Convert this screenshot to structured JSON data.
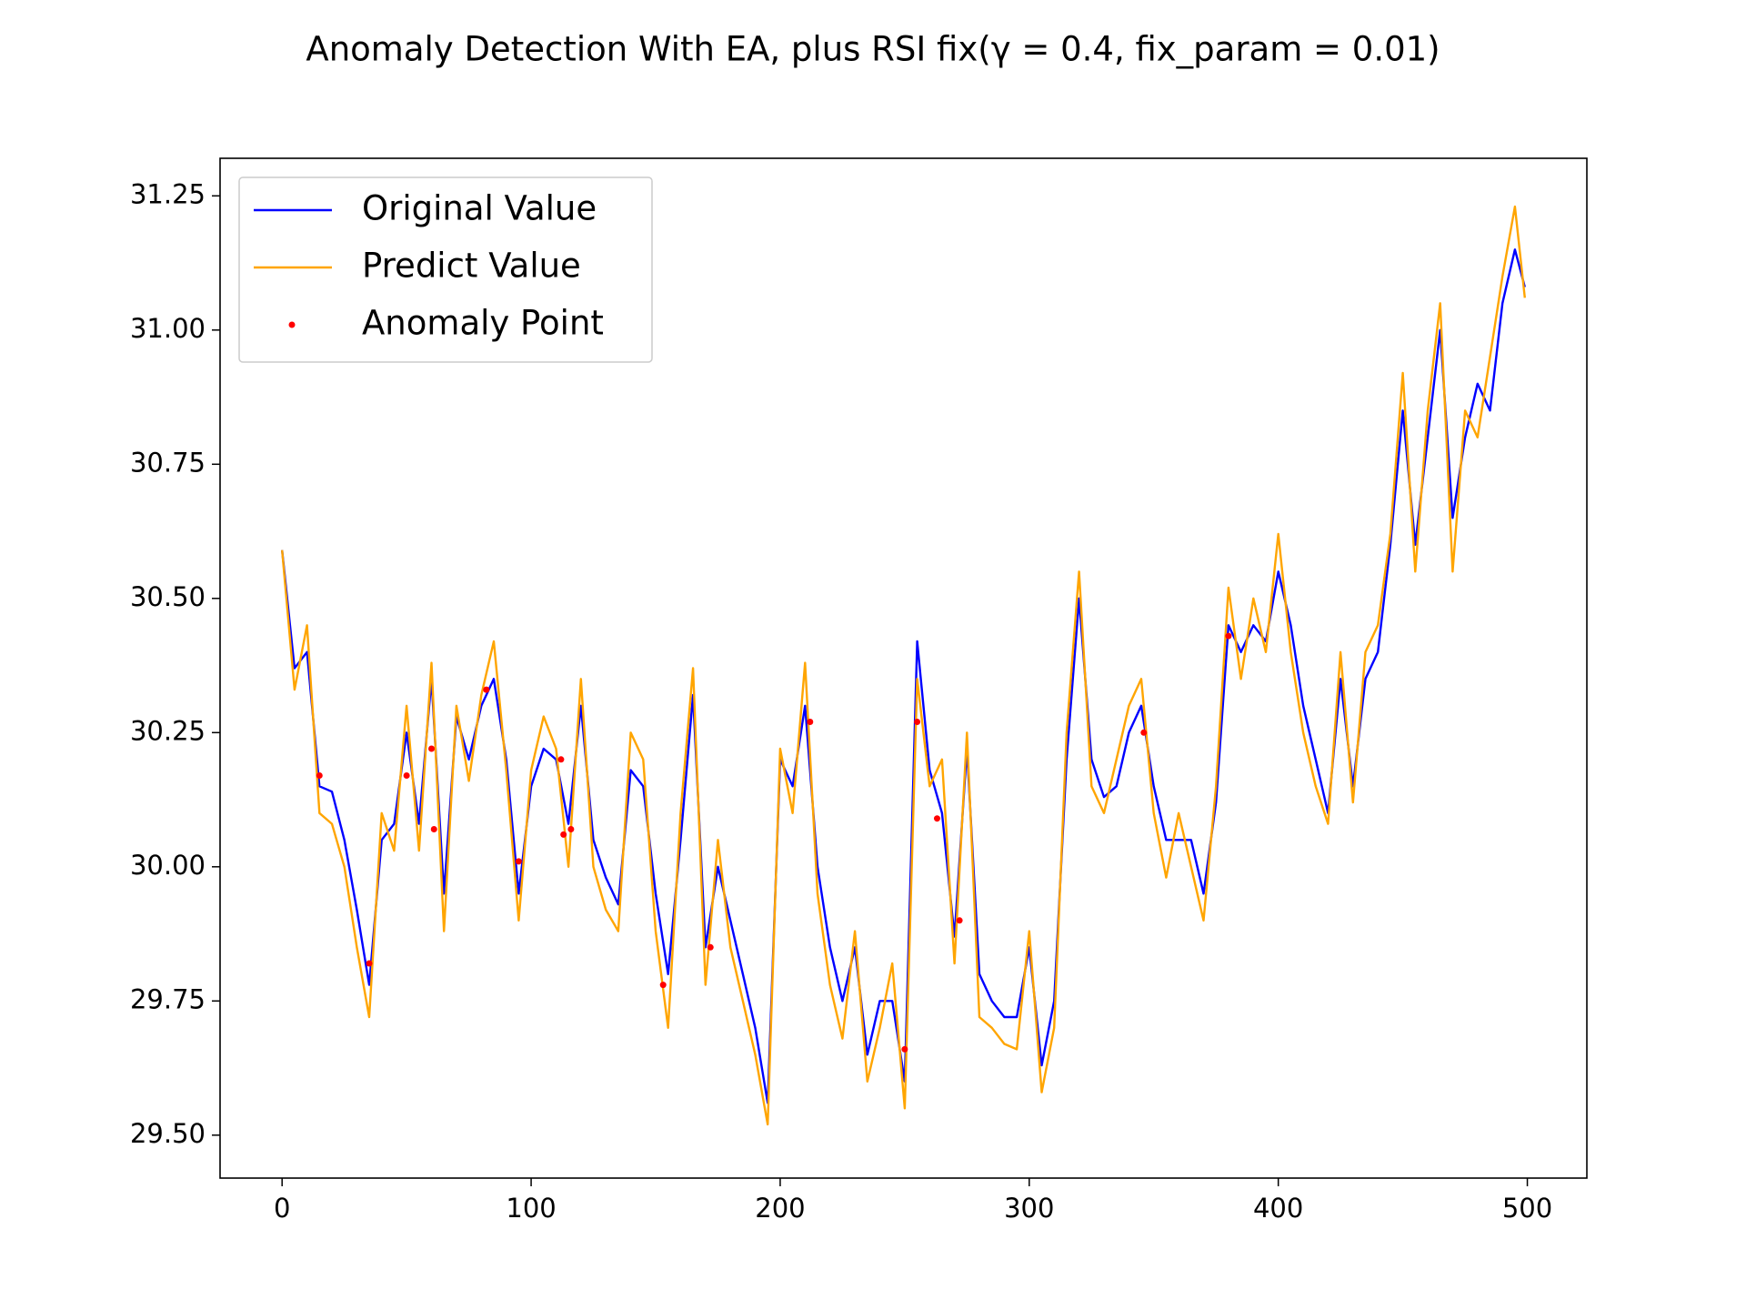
{
  "chart_data": {
    "type": "line",
    "title": "Anomaly Detection With EA, plus RSI fix(γ = 0.4, fix_param = 0.01)",
    "x": [
      0,
      5,
      10,
      15,
      20,
      25,
      30,
      35,
      40,
      45,
      50,
      55,
      60,
      65,
      70,
      75,
      80,
      85,
      90,
      95,
      100,
      105,
      110,
      115,
      120,
      125,
      130,
      135,
      140,
      145,
      150,
      155,
      160,
      165,
      170,
      175,
      180,
      185,
      190,
      195,
      200,
      205,
      210,
      215,
      220,
      225,
      230,
      235,
      240,
      245,
      250,
      255,
      260,
      265,
      270,
      275,
      280,
      285,
      290,
      295,
      300,
      305,
      310,
      315,
      320,
      325,
      330,
      335,
      340,
      345,
      350,
      355,
      360,
      365,
      370,
      375,
      380,
      385,
      390,
      395,
      400,
      405,
      410,
      415,
      420,
      425,
      430,
      435,
      440,
      445,
      450,
      455,
      460,
      465,
      470,
      475,
      480,
      485,
      490,
      495,
      499
    ],
    "series": [
      {
        "name": "Original Value",
        "color": "#0000ff",
        "values": [
          30.59,
          30.37,
          30.4,
          30.15,
          30.14,
          30.05,
          29.92,
          29.78,
          30.05,
          30.08,
          30.25,
          30.08,
          30.35,
          29.95,
          30.28,
          30.2,
          30.3,
          30.35,
          30.2,
          29.95,
          30.15,
          30.22,
          30.2,
          30.08,
          30.3,
          30.05,
          29.98,
          29.93,
          30.18,
          30.15,
          29.95,
          29.8,
          30.05,
          30.32,
          29.85,
          30.0,
          29.9,
          29.8,
          29.7,
          29.56,
          30.2,
          30.15,
          30.3,
          30.0,
          29.85,
          29.75,
          29.85,
          29.65,
          29.75,
          29.75,
          29.6,
          30.42,
          30.18,
          30.1,
          29.87,
          30.22,
          29.8,
          29.75,
          29.72,
          29.72,
          29.85,
          29.63,
          29.75,
          30.2,
          30.5,
          30.2,
          30.13,
          30.15,
          30.25,
          30.3,
          30.15,
          30.05,
          30.05,
          30.05,
          29.95,
          30.12,
          30.45,
          30.4,
          30.45,
          30.42,
          30.55,
          30.45,
          30.3,
          30.2,
          30.1,
          30.35,
          30.15,
          30.35,
          30.4,
          30.6,
          30.85,
          30.6,
          30.8,
          31.0,
          30.65,
          30.8,
          30.9,
          30.85,
          31.05,
          31.15,
          31.08
        ]
      },
      {
        "name": "Predict Value",
        "color": "#ffa500",
        "values": [
          30.59,
          30.33,
          30.45,
          30.1,
          30.08,
          30.0,
          29.85,
          29.72,
          30.1,
          30.03,
          30.3,
          30.03,
          30.38,
          29.88,
          30.3,
          30.16,
          30.32,
          30.42,
          30.18,
          29.9,
          30.18,
          30.28,
          30.22,
          30.0,
          30.35,
          30.0,
          29.92,
          29.88,
          30.25,
          30.2,
          29.88,
          29.7,
          30.1,
          30.37,
          29.78,
          30.05,
          29.85,
          29.75,
          29.65,
          29.52,
          30.22,
          30.1,
          30.38,
          29.95,
          29.78,
          29.68,
          29.88,
          29.6,
          29.7,
          29.82,
          29.55,
          30.35,
          30.15,
          30.2,
          29.82,
          30.25,
          29.72,
          29.7,
          29.67,
          29.66,
          29.88,
          29.58,
          29.7,
          30.25,
          30.55,
          30.15,
          30.1,
          30.2,
          30.3,
          30.35,
          30.1,
          29.98,
          30.1,
          30.0,
          29.9,
          30.15,
          30.52,
          30.35,
          30.5,
          30.4,
          30.62,
          30.4,
          30.25,
          30.15,
          30.08,
          30.4,
          30.12,
          30.4,
          30.45,
          30.62,
          30.92,
          30.55,
          30.85,
          31.05,
          30.55,
          30.85,
          30.8,
          30.95,
          31.1,
          31.23,
          31.06
        ]
      },
      {
        "name": "Anomaly Point",
        "type": "scatter",
        "color": "#ff0000",
        "x": [
          15,
          35,
          50,
          60,
          61,
          82,
          95,
          112,
          113,
          116,
          153,
          172,
          212,
          250,
          255,
          263,
          272,
          346,
          380
        ],
        "values": [
          30.17,
          29.82,
          30.17,
          30.22,
          30.07,
          30.33,
          30.01,
          30.2,
          30.06,
          30.07,
          29.78,
          29.85,
          30.27,
          29.66,
          30.27,
          30.09,
          29.9,
          30.25,
          30.43
        ]
      }
    ],
    "xlim": [
      -24.9,
      523.9
    ],
    "xticks": [
      0,
      100,
      200,
      300,
      400,
      500
    ],
    "ylim": [
      29.42,
      31.32
    ],
    "yticks": [
      {
        "value": 29.5,
        "label": "29.50"
      },
      {
        "value": 29.75,
        "label": "29.75"
      },
      {
        "value": 30,
        "label": "30.00"
      },
      {
        "value": 30.25,
        "label": "30.25"
      },
      {
        "value": 30.5,
        "label": "30.50"
      },
      {
        "value": 30.75,
        "label": "30.75"
      },
      {
        "value": 31,
        "label": "31.00"
      },
      {
        "value": 31.25,
        "label": "31.25"
      }
    ],
    "legend": "upper left"
  }
}
